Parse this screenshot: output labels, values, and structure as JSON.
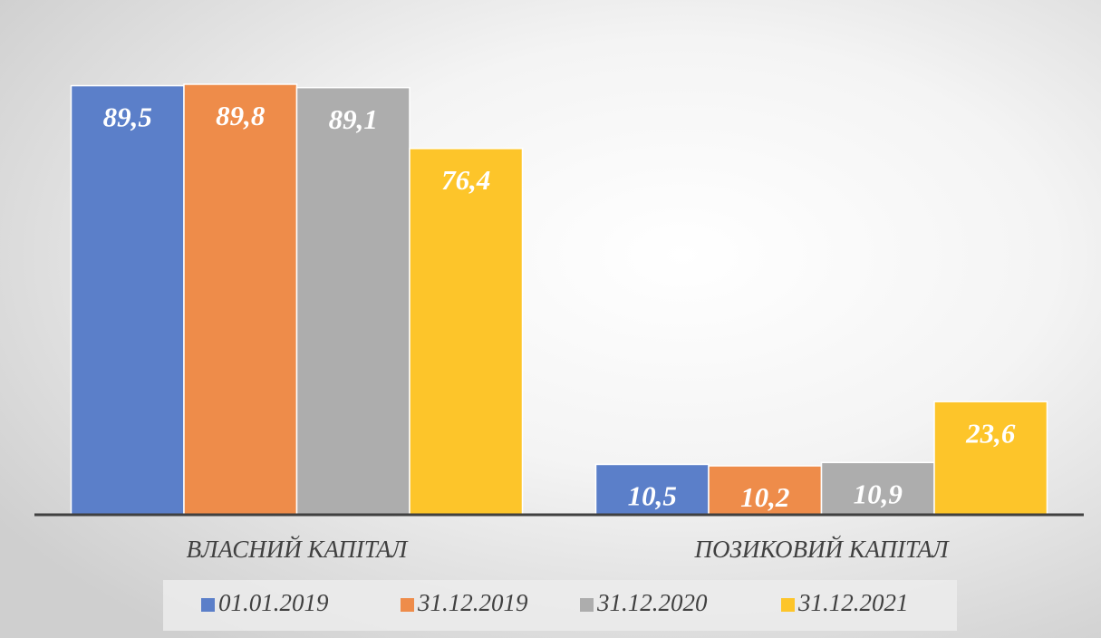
{
  "chart_data": {
    "type": "bar",
    "categories": [
      "ВЛАСНИЙ КАПІТАЛ",
      "ПОЗИКОВИЙ КАПІТАЛ"
    ],
    "series": [
      {
        "name": "01.01.2019",
        "color": "#5b7fc9",
        "values": [
          89.5,
          10.5
        ],
        "value_labels": [
          "89,5",
          "10,5"
        ]
      },
      {
        "name": "31.12.2019",
        "color": "#ee8c4a",
        "values": [
          89.8,
          10.2
        ],
        "value_labels": [
          "89,8",
          "10,2"
        ]
      },
      {
        "name": "31.12.2020",
        "color": "#adadad",
        "values": [
          89.1,
          10.9
        ],
        "value_labels": [
          "89,1",
          "10,9"
        ]
      },
      {
        "name": "31.12.2021",
        "color": "#fdc52a",
        "values": [
          76.4,
          23.6
        ],
        "value_labels": [
          "76,4",
          "23,6"
        ]
      }
    ],
    "ylim": [
      0,
      100
    ],
    "legend": "bottom"
  }
}
